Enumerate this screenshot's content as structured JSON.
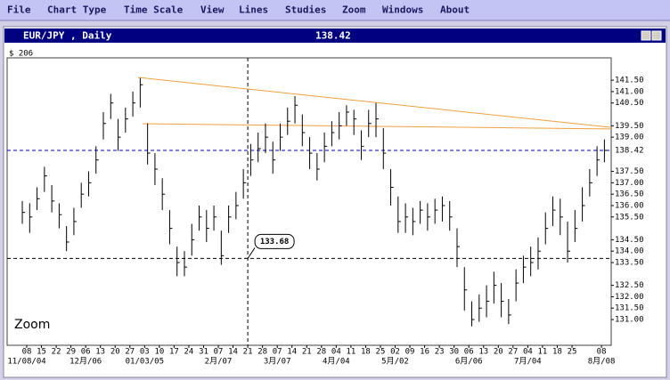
{
  "menu": [
    "File",
    "Chart Type",
    "Time Scale",
    "View",
    "Lines",
    "Studies",
    "Zoom",
    "Windows",
    "About"
  ],
  "window": {
    "title": "EUR/JPY , Daily",
    "price": "138.42"
  },
  "chart_data": {
    "type": "ohlc",
    "corner_label": "$ 206",
    "zoom_label": "Zoom",
    "color": "#000000",
    "xlim": [
      -1.33,
      39.66
    ],
    "ylim": [
      129.87,
      142.48
    ],
    "x": [
      -0.3,
      0.2,
      0.7,
      1.2,
      1.7,
      2.2,
      2.7,
      3.2,
      3.7,
      4.2,
      4.7,
      5.2,
      5.7,
      6.2,
      6.7,
      7.2,
      7.7,
      8.2,
      8.7,
      9.2,
      9.7,
      10.2,
      10.7,
      11.2,
      11.7,
      12.2,
      12.7,
      13.2,
      13.7,
      14.2,
      14.7,
      15.2,
      15.7,
      16.2,
      16.7,
      17.2,
      17.7,
      18.2,
      18.7,
      19.2,
      19.7,
      20.2,
      20.7,
      21.2,
      21.7,
      22.2,
      22.7,
      23.2,
      23.7,
      24.2,
      24.7,
      25.2,
      25.7,
      26.2,
      26.7,
      27.2,
      27.7,
      28.2,
      28.7,
      29.2,
      29.7,
      30.2,
      30.7,
      31.2,
      31.7,
      32.2,
      32.7,
      33.2,
      33.7,
      34.2,
      34.7,
      35.2,
      35.7,
      36.2,
      36.7,
      37.2,
      37.7,
      38.2,
      38.7,
      39.2
    ],
    "high": [
      136.2,
      136.1,
      136.8,
      137.7,
      136.9,
      136.1,
      135.1,
      135.9,
      137.0,
      137.5,
      138.6,
      140.1,
      140.9,
      139.8,
      140.3,
      141.0,
      141.6,
      139.6,
      138.3,
      137.2,
      135.8,
      134.2,
      134.0,
      135.2,
      136.0,
      135.8,
      136.0,
      134.9,
      136.0,
      136.6,
      137.6,
      138.7,
      139.2,
      139.6,
      138.8,
      139.6,
      140.3,
      140.8,
      140.0,
      139.0,
      138.3,
      139.2,
      139.7,
      140.1,
      140.4,
      140.2,
      139.3,
      140.2,
      140.5,
      139.4,
      137.6,
      136.4,
      136.1,
      135.9,
      136.2,
      136.1,
      136.3,
      136.4,
      136.2,
      135.0,
      133.3,
      131.8,
      132.1,
      132.5,
      133.1,
      132.6,
      131.9,
      133.2,
      133.8,
      134.2,
      134.6,
      135.7,
      136.4,
      136.3,
      135.3,
      135.8,
      136.8,
      137.6,
      138.6,
      138.9
    ],
    "low": [
      135.2,
      134.8,
      135.8,
      136.6,
      135.7,
      135.0,
      134.0,
      134.7,
      135.9,
      136.4,
      137.4,
      138.9,
      139.8,
      138.4,
      139.2,
      139.9,
      140.3,
      137.8,
      136.9,
      135.8,
      134.3,
      132.9,
      132.9,
      133.8,
      134.9,
      134.4,
      134.9,
      133.4,
      134.8,
      135.4,
      136.3,
      137.3,
      137.9,
      138.3,
      137.4,
      138.4,
      139.1,
      139.6,
      138.6,
      137.6,
      137.1,
      137.9,
      138.6,
      138.9,
      139.5,
      139.1,
      138.0,
      139.0,
      139.0,
      137.6,
      136.0,
      134.8,
      134.8,
      134.7,
      135.2,
      134.9,
      135.2,
      135.3,
      134.9,
      133.3,
      131.4,
      130.7,
      130.9,
      131.1,
      131.7,
      131.1,
      130.8,
      131.8,
      132.6,
      132.9,
      133.2,
      134.3,
      135.1,
      134.7,
      133.5,
      134.4,
      135.3,
      136.4,
      137.3,
      137.9
    ],
    "close": [
      135.7,
      135.5,
      136.3,
      137.3,
      136.2,
      135.6,
      134.4,
      135.3,
      136.5,
      137.0,
      138.0,
      139.6,
      140.5,
      139.0,
      139.8,
      140.5,
      141.3,
      138.3,
      137.6,
      136.5,
      135.0,
      133.5,
      133.3,
      134.5,
      135.5,
      135.0,
      135.5,
      133.8,
      135.5,
      136.0,
      137.0,
      138.0,
      138.5,
      139.0,
      138.0,
      139.0,
      139.7,
      140.4,
      139.2,
      138.3,
      137.6,
      138.6,
      139.2,
      139.5,
      140.1,
      139.8,
      138.6,
      139.6,
      139.8,
      138.3,
      136.8,
      135.3,
      135.5,
      135.3,
      135.8,
      135.5,
      135.8,
      136.0,
      135.5,
      134.2,
      132.3,
      131.0,
      131.5,
      131.8,
      132.5,
      131.8,
      131.2,
      132.6,
      133.3,
      133.5,
      134.0,
      135.0,
      135.8,
      135.5,
      134.0,
      135.0,
      136.0,
      137.0,
      138.0,
      138.42
    ],
    "yticks": [
      {
        "value": 141.5,
        "label": "141.50"
      },
      {
        "value": 141,
        "label": "141.00"
      },
      {
        "value": 140.5,
        "label": "140.50"
      },
      {
        "value": 139.5,
        "label": "139.50"
      },
      {
        "value": 139,
        "label": "139.00"
      },
      {
        "value": 137.5,
        "label": "137.50"
      },
      {
        "value": 137,
        "label": "137.00"
      },
      {
        "value": 136.5,
        "label": "136.50"
      },
      {
        "value": 136,
        "label": "136.00"
      },
      {
        "value": 135.5,
        "label": "135.50"
      },
      {
        "value": 134.5,
        "label": "134.50"
      },
      {
        "value": 134,
        "label": "134.00"
      },
      {
        "value": 133.5,
        "label": "133.50"
      },
      {
        "value": 132.5,
        "label": "132.50"
      },
      {
        "value": 132,
        "label": "132.00"
      },
      {
        "value": 131.5,
        "label": "131.50"
      },
      {
        "value": 131,
        "label": "131.00"
      }
    ],
    "xticks": [
      {
        "value": 0,
        "label": "08"
      },
      {
        "value": 1,
        "label": "15"
      },
      {
        "value": 2,
        "label": "22"
      },
      {
        "value": 3,
        "label": "29"
      },
      {
        "value": 4,
        "label": "06"
      },
      {
        "value": 5,
        "label": "13"
      },
      {
        "value": 6,
        "label": "20"
      },
      {
        "value": 7,
        "label": "27"
      },
      {
        "value": 8,
        "label": "03"
      },
      {
        "value": 9,
        "label": "10"
      },
      {
        "value": 10,
        "label": "17"
      },
      {
        "value": 11,
        "label": "24"
      },
      {
        "value": 12,
        "label": "31"
      },
      {
        "value": 13,
        "label": "07"
      },
      {
        "value": 14,
        "label": "14"
      },
      {
        "value": 15,
        "label": "21"
      },
      {
        "value": 16,
        "label": "28"
      },
      {
        "value": 17,
        "label": "07"
      },
      {
        "value": 18,
        "label": "14"
      },
      {
        "value": 19,
        "label": "21"
      },
      {
        "value": 20,
        "label": "28"
      },
      {
        "value": 21,
        "label": "04"
      },
      {
        "value": 22,
        "label": "11"
      },
      {
        "value": 23,
        "label": "18"
      },
      {
        "value": 24,
        "label": "25"
      },
      {
        "value": 25,
        "label": "02"
      },
      {
        "value": 26,
        "label": "09"
      },
      {
        "value": 27,
        "label": "16"
      },
      {
        "value": 28,
        "label": "23"
      },
      {
        "value": 29,
        "label": "30"
      },
      {
        "value": 30,
        "label": "06"
      },
      {
        "value": 31,
        "label": "13"
      },
      {
        "value": 32,
        "label": "20"
      },
      {
        "value": 33,
        "label": "27"
      },
      {
        "value": 34,
        "label": "04"
      },
      {
        "value": 35,
        "label": "11"
      },
      {
        "value": 36,
        "label": "18"
      },
      {
        "value": 37,
        "label": "25"
      },
      {
        "value": 39,
        "label": "08"
      }
    ],
    "xticks_major": [
      {
        "value": 0,
        "label": "11/08/04"
      },
      {
        "value": 4,
        "label": "12月/06"
      },
      {
        "value": 8,
        "label": "01/03/05"
      },
      {
        "value": 13,
        "label": "2月/07"
      },
      {
        "value": 17,
        "label": "3月/07"
      },
      {
        "value": 21,
        "label": "4月/04"
      },
      {
        "value": 25,
        "label": "5月/02"
      },
      {
        "value": 30,
        "label": "6月/06"
      },
      {
        "value": 34,
        "label": "7月/04"
      },
      {
        "value": 39,
        "label": "8月/08"
      }
    ],
    "current_price": {
      "value": 138.42,
      "label": "138.42",
      "color": "#0000c0"
    },
    "crosshair": {
      "x": 15,
      "y": 133.68,
      "label": "133.68"
    },
    "trendlines": [
      {
        "x": [
          7.56,
          39.66
        ],
        "y": [
          141.62,
          139.43
        ],
        "color": "#f0a040"
      },
      {
        "x": [
          7.86,
          39.66
        ],
        "y": [
          139.59,
          139.36
        ],
        "color": "#f0a040"
      }
    ]
  }
}
